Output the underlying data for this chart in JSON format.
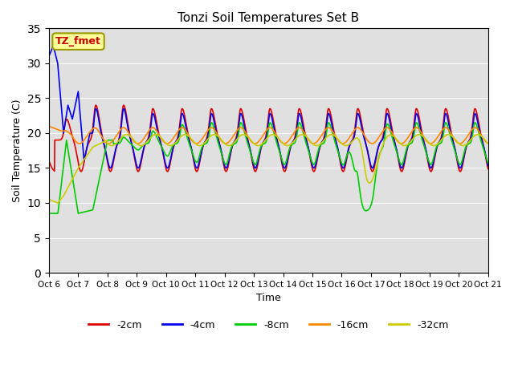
{
  "title": "Tonzi Soil Temperatures Set B",
  "xlabel": "Time",
  "ylabel": "Soil Temperature (C)",
  "annotation_text": "TZ_fmet",
  "annotation_color": "#cc0000",
  "annotation_bg": "#ffff99",
  "annotation_border": "#999900",
  "ylim": [
    0,
    35
  ],
  "yticks": [
    0,
    5,
    10,
    15,
    20,
    25,
    30,
    35
  ],
  "bg_color": "#e0e0e0",
  "grid_color": "#ffffff",
  "series": {
    "-2cm": {
      "color": "#dd0000",
      "linewidth": 1.2
    },
    "-4cm": {
      "color": "#0000ee",
      "linewidth": 1.2
    },
    "-8cm": {
      "color": "#00cc00",
      "linewidth": 1.2
    },
    "-16cm": {
      "color": "#ff8800",
      "linewidth": 1.2
    },
    "-32cm": {
      "color": "#cccc00",
      "linewidth": 1.2
    }
  },
  "x_tick_labels": [
    "Oct 6",
    "Oct 7",
    "Oct 8",
    "Oct 9",
    "Oct 10",
    "Oct 11",
    "Oct 12",
    "Oct 13",
    "Oct 14",
    "Oct 15",
    "Oct 16",
    "Oct 17",
    "Oct 18",
    "Oct 19",
    "Oct 20",
    "Oct 21"
  ]
}
